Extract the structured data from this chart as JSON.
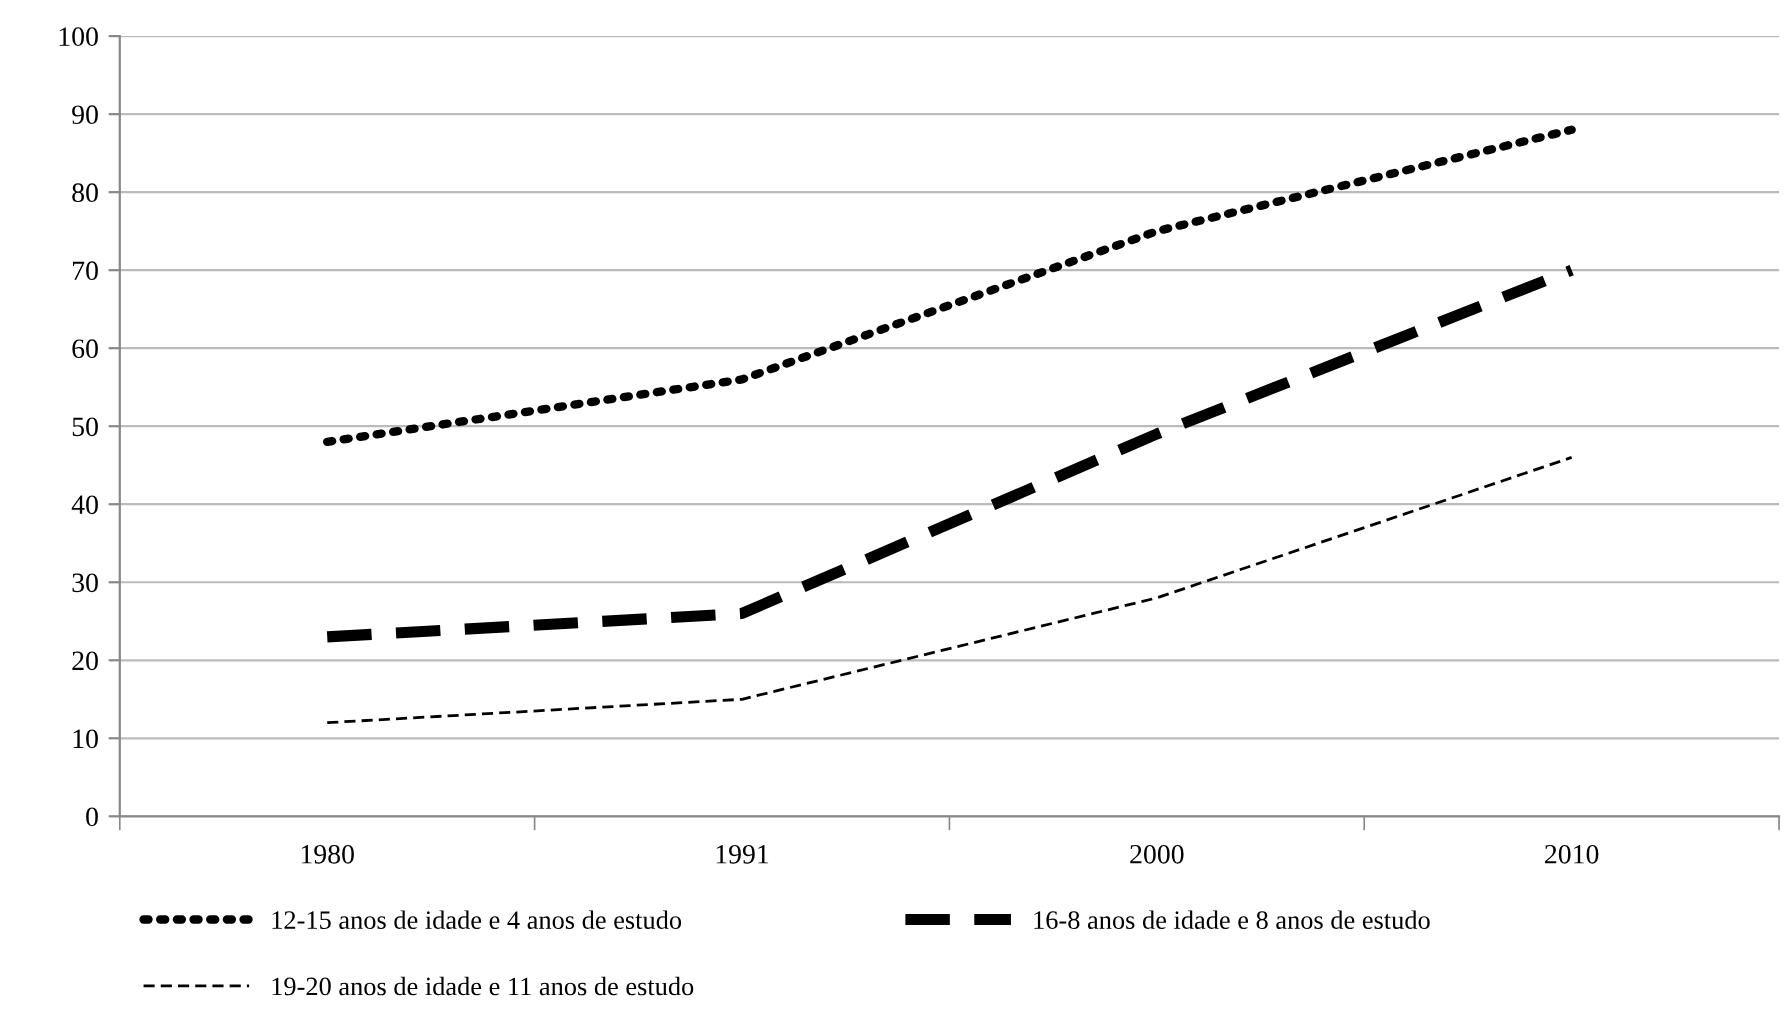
{
  "chart_data": {
    "type": "line",
    "categories": [
      "1980",
      "1991",
      "2000",
      "2010"
    ],
    "series": [
      {
        "name": "12-15 anos de idade e 4 anos de estudo",
        "color": "#000000",
        "line_style": "dotted",
        "values": [
          48,
          56,
          75,
          88
        ]
      },
      {
        "name": "16-8 anos de idade e 8 anos de estudo",
        "color": "#000000",
        "line_style": "dashed",
        "values": [
          23,
          26,
          49,
          70
        ]
      },
      {
        "name": "19-20 anos de idade e 11 anos de estudo",
        "color": "#000000",
        "line_style": "dashed",
        "values": [
          12,
          15,
          28,
          46
        ]
      }
    ],
    "ylim": [
      0,
      100
    ],
    "yticks": [
      0,
      10,
      20,
      30,
      40,
      50,
      60,
      70,
      80,
      90,
      100
    ],
    "grid": "y",
    "legend": "bottom"
  }
}
